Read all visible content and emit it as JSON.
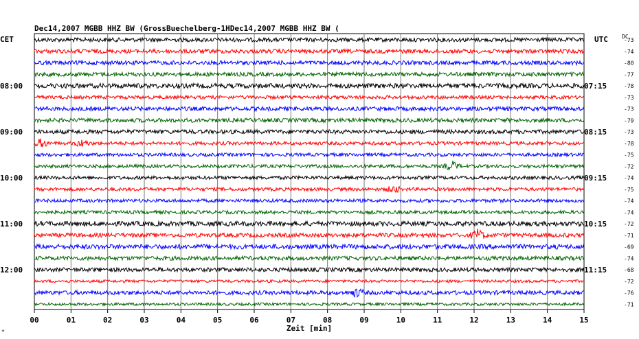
{
  "header": {
    "title": "Dec14,2007   MGBB HHZ BW (GrossBuechelberg-1HDec14,2007   MGBB HHZ BW (",
    "left_zone": "CET",
    "right_zone": "UTC",
    "dc_label": "DC"
  },
  "chart_data": {
    "type": "line",
    "title": "Dec14,2007   MGBB HHZ BW (GrossBuechelberg-1HDec14,2007   MGBB HHZ BW (",
    "xlabel": "Zeit [min]",
    "xlim": [
      0,
      15
    ],
    "x_ticks": [
      "00",
      "01",
      "02",
      "03",
      "04",
      "05",
      "06",
      "07",
      "08",
      "09",
      "10",
      "11",
      "12",
      "13",
      "14",
      "15"
    ],
    "grid": "vertical lines every minute",
    "trace_colors": [
      "#000000",
      "#ff0000",
      "#0000ff",
      "#006400"
    ],
    "left_time_labels": [
      {
        "trace": 4,
        "text": "08:00"
      },
      {
        "trace": 8,
        "text": "09:00"
      },
      {
        "trace": 12,
        "text": "10:00"
      },
      {
        "trace": 16,
        "text": "11:00"
      },
      {
        "trace": 20,
        "text": "12:00"
      }
    ],
    "right_time_labels": [
      {
        "trace": 4,
        "text": "07:15"
      },
      {
        "trace": 8,
        "text": "08:15"
      },
      {
        "trace": 12,
        "text": "09:15"
      },
      {
        "trace": 16,
        "text": "10:15"
      },
      {
        "trace": 20,
        "text": "11:15"
      }
    ],
    "dc_offsets": [
      "-73",
      "-74",
      "-80",
      "-77",
      "-78",
      "-73",
      "-73",
      "-79",
      "-73",
      "-78",
      "-75",
      "-72",
      "-74",
      "-75",
      "-74",
      "-74",
      "-72",
      "-71",
      "-69",
      "-74",
      "-68",
      "-72",
      "-76",
      "-71"
    ],
    "series": [
      {
        "amplitude": 3.0
      },
      {
        "amplitude": 3.0
      },
      {
        "amplitude": 3.0
      },
      {
        "amplitude": 3.0
      },
      {
        "amplitude": 3.5
      },
      {
        "amplitude": 2.5
      },
      {
        "amplitude": 3.0
      },
      {
        "amplitude": 3.0
      },
      {
        "amplitude": 3.0
      },
      {
        "amplitude": 2.5,
        "events": [
          {
            "minute": 0.2,
            "amp": 5
          },
          {
            "minute": 1.3,
            "amp": 4
          }
        ]
      },
      {
        "amplitude": 2.5
      },
      {
        "amplitude": 2.5,
        "events": [
          {
            "minute": 11.4,
            "amp": 6
          }
        ]
      },
      {
        "amplitude": 2.5
      },
      {
        "amplitude": 2.5,
        "events": [
          {
            "minute": 9.8,
            "amp": 4
          }
        ]
      },
      {
        "amplitude": 2.5
      },
      {
        "amplitude": 2.5
      },
      {
        "amplitude": 3.5
      },
      {
        "amplitude": 3.0,
        "events": [
          {
            "minute": 12.1,
            "amp": 7
          }
        ]
      },
      {
        "amplitude": 3.5
      },
      {
        "amplitude": 3.0
      },
      {
        "amplitude": 3.0
      },
      {
        "amplitude": 2.0
      },
      {
        "amplitude": 3.0,
        "events": [
          {
            "minute": 8.8,
            "amp": 5
          }
        ]
      },
      {
        "amplitude": 2.0
      }
    ]
  }
}
